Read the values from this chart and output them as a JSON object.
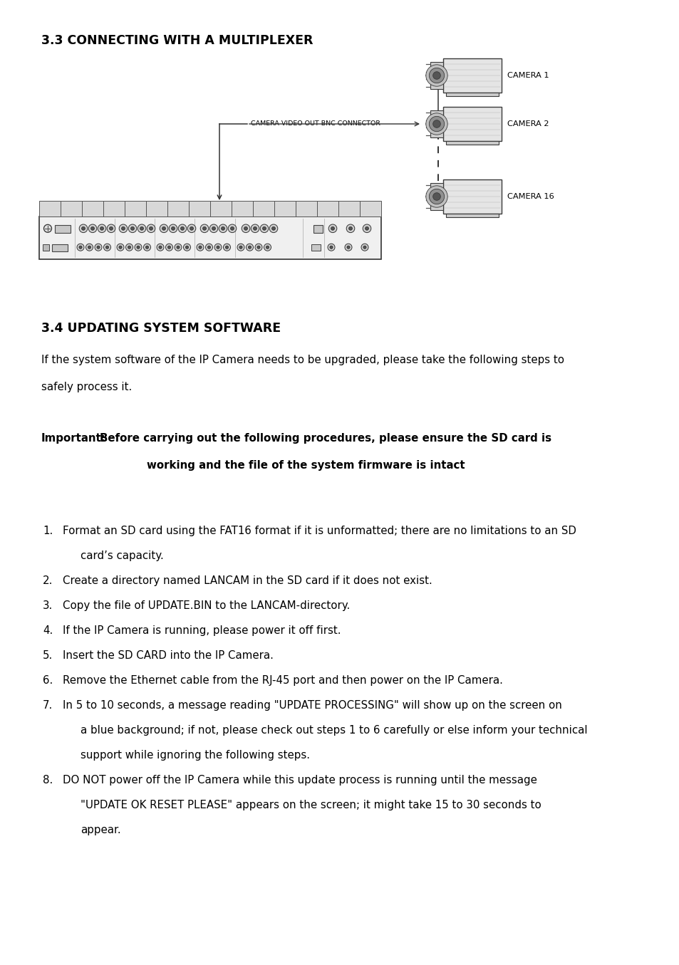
{
  "bg_color": "#ffffff",
  "section1_title": "3.3 CONNECTING WITH A MULTIPLEXER",
  "section2_title": "3.4 UPDATING SYSTEM SOFTWARE",
  "bnc_label": "CAMERA VIDEO OUT BNC CONNECTOR",
  "camera_labels": [
    "CAMERA 1",
    "CAMERA 2",
    "CAMERA 16"
  ],
  "important_label": "Important:",
  "important_line1": "Before carrying out the following procedures, please ensure the SD card is",
  "important_line2": "working and the file of the system firmware is intact",
  "intro_line1": "If the system software of the IP Camera needs to be upgraded, please take the following steps to",
  "intro_line2": "safely process it.",
  "steps": [
    [
      "1.",
      "Format an SD card using the FAT16 format if it is unformatted; there are no limitations to an SD",
      true
    ],
    [
      "",
      "card’s capacity.",
      false
    ],
    [
      "2.",
      "Create a directory named LANCAM in the SD card if it does not exist.",
      true
    ],
    [
      "3.",
      "Copy the file of UPDATE.BIN to the LANCAM-directory.",
      true
    ],
    [
      "4.",
      "If the IP Camera is running, please power it off first.",
      true
    ],
    [
      "5.",
      "Insert the SD CARD into the IP Camera.",
      true
    ],
    [
      "6.",
      "Remove the Ethernet cable from the RJ-45 port and then power on the IP Camera.",
      true
    ],
    [
      "7.",
      "In 5 to 10 seconds, a message reading \"UPDATE PROCESSING\" will show up on the screen on",
      true
    ],
    [
      "",
      "a blue background; if not, please check out steps 1 to 6 carefully or else inform your technical",
      false
    ],
    [
      "",
      "support while ignoring the following steps.",
      false
    ],
    [
      "8.",
      "DO NOT power off the IP Camera while this update process is running until the message",
      true
    ],
    [
      "",
      "\"UPDATE OK RESET PLEASE\" appears on the screen; it might take 15 to 30 seconds to",
      false
    ],
    [
      "",
      "appear.",
      false
    ]
  ],
  "title_fontsize": 12.5,
  "body_fontsize": 10.8,
  "small_fontsize": 6.8
}
